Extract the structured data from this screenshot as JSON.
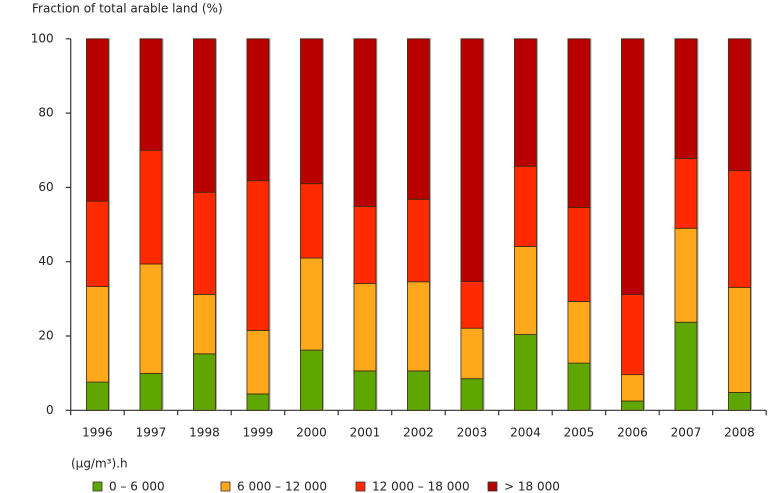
{
  "chart_data": {
    "type": "bar",
    "stacked": true,
    "title": "",
    "ylabel": "Fraction of total arable land (%)",
    "xlabel": "",
    "ylim": [
      0,
      100
    ],
    "yticks": [
      0,
      20,
      40,
      60,
      80,
      100
    ],
    "grid": false,
    "categories": [
      "1996",
      "1997",
      "1998",
      "1999",
      "2000",
      "2001",
      "2002",
      "2003",
      "2004",
      "2005",
      "2006",
      "2007",
      "2008"
    ],
    "legend_title": "(µg/m³).h",
    "legend_position": "bottom",
    "series": [
      {
        "name": "0 – 6 000",
        "color": "#5fa600",
        "values": [
          7.6,
          9.9,
          15.2,
          4.4,
          16.2,
          10.6,
          10.6,
          8.5,
          20.4,
          12.7,
          2.5,
          23.7,
          4.8
        ]
      },
      {
        "name": "6 000 – 12 000",
        "color": "#ffa81c",
        "values": [
          25.7,
          29.5,
          16.0,
          17.1,
          24.8,
          23.5,
          24.0,
          13.6,
          23.7,
          16.6,
          7.1,
          25.3,
          28.3
        ]
      },
      {
        "name": "12 000 – 18 000",
        "color": "#ff2a00",
        "values": [
          23.0,
          30.6,
          27.5,
          40.3,
          20.0,
          20.8,
          22.2,
          12.6,
          21.6,
          25.3,
          21.6,
          18.8,
          31.4
        ]
      },
      {
        "name": "> 18 000",
        "color": "#b80000",
        "values": [
          43.7,
          30.0,
          41.3,
          38.2,
          39.0,
          45.1,
          43.2,
          65.3,
          34.3,
          45.4,
          68.8,
          32.2,
          35.5
        ]
      }
    ]
  }
}
